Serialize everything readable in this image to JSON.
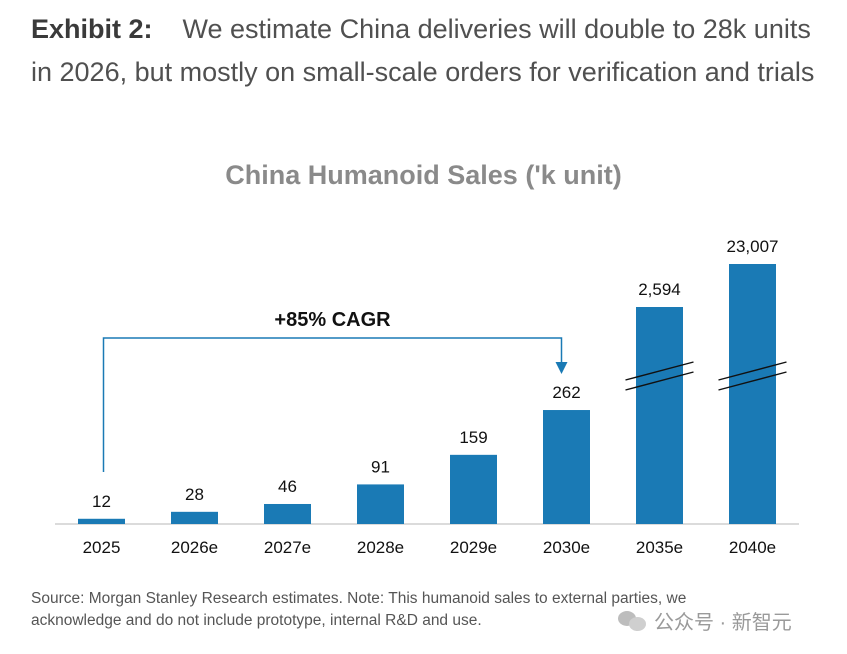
{
  "exhibit": {
    "label": "Exhibit 2:",
    "text": "We estimate China deliveries will double to 28k units in 2026, but mostly on small-scale orders for verification and trials"
  },
  "chart_data": {
    "type": "bar",
    "title": "China Humanoid Sales ('k unit)",
    "categories": [
      "2025",
      "2026e",
      "2027e",
      "2028e",
      "2029e",
      "2030e",
      "2035e",
      "2040e"
    ],
    "values": [
      12,
      28,
      46,
      91,
      159,
      262,
      2594,
      23007
    ],
    "value_labels": [
      "12",
      "28",
      "46",
      "91",
      "159",
      "262",
      "2,594",
      "23,007"
    ],
    "broken_axis_categories": [
      "2035e",
      "2040e"
    ],
    "annotation": {
      "text": "+85% CAGR",
      "from": "2025",
      "to": "2030e"
    },
    "bar_color": "#1a7ab5",
    "axis_color": "#cfcfcf"
  },
  "source": "Source: Morgan Stanley Research estimates. Note: This humanoid sales to external parties, we acknowledge and do not include prototype, internal R&D and use.",
  "watermark": {
    "text": "公众号 · 新智元",
    "icon": "wechat-icon"
  }
}
